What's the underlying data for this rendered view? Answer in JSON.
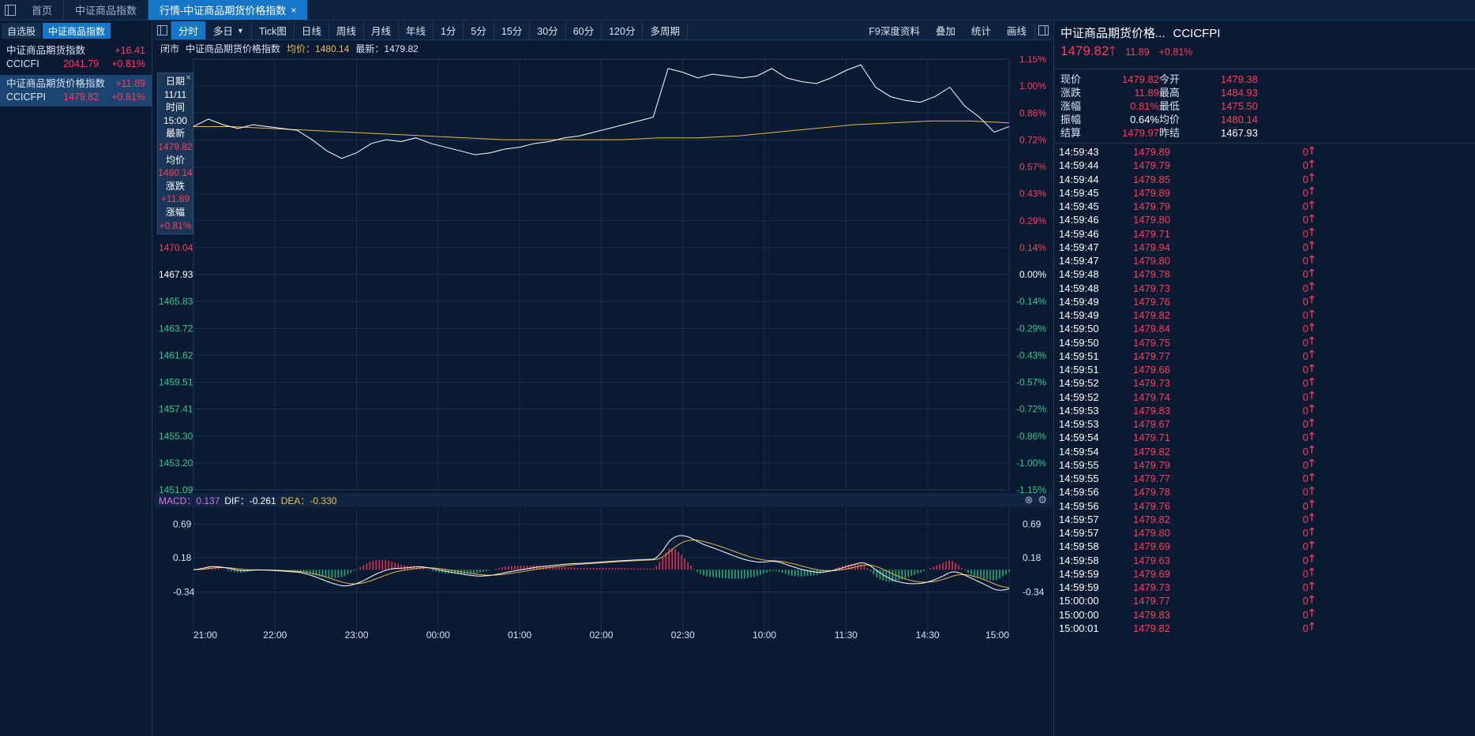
{
  "tabs": [
    {
      "label": "首页"
    },
    {
      "label": "中证商品指数"
    },
    {
      "label": "行情-中证商品期货价格指数",
      "close": "×"
    }
  ],
  "left": {
    "tabs": [
      "自选股",
      "中证商品指数"
    ],
    "items": [
      {
        "name": "中证商品期货指数",
        "change": "+16.41",
        "code": "CCICFI",
        "price": "2041.79",
        "pct": "+0.81%"
      },
      {
        "name": "中证商品期货价格指数",
        "change": "+11.89",
        "code": "CCICFPI",
        "price": "1479.82",
        "pct": "+0.81%"
      }
    ]
  },
  "toolbar": {
    "periods": [
      "分时",
      "多日",
      "Tick图",
      "日线",
      "周线",
      "月线",
      "年线",
      "1分",
      "5分",
      "15分",
      "30分",
      "60分",
      "120分",
      "多周期"
    ],
    "right": [
      "F9深度资料",
      "叠加",
      "统计",
      "画线"
    ]
  },
  "infobar": {
    "status": "闭市",
    "name": "中证商品期货价格指数",
    "avg": "均价：1480.14",
    "last": "最新：1479.82"
  },
  "tooltip": {
    "close": "×",
    "date_label": "日期",
    "date": "11/11",
    "time_label": "时间",
    "time": "15:00",
    "last_label": "最新",
    "last": "1479.82",
    "avg_label": "均价",
    "avg": "1480.14",
    "chg_label": "涨跌",
    "chg": "+11.89",
    "pct_label": "涨幅",
    "pct": "+0.81%"
  },
  "macd": {
    "macd": "MACD：0.137",
    "dif": "DIF：-0.261",
    "dea": "DEA：-0.330"
  },
  "right": {
    "title": "中证商品期货价格...",
    "code": "CCICFPI",
    "price": "1479.82",
    "arrow": "🡑",
    "chg": "11.89",
    "pct": "+0.81%",
    "quote": [
      [
        "现价",
        "1479.82",
        "今开",
        "1479.38"
      ],
      [
        "涨跌",
        "11.89",
        "最高",
        "1484.93"
      ],
      [
        "涨幅",
        "0.81%",
        "最低",
        "1475.50"
      ],
      [
        "振幅",
        "0.64%",
        "均价",
        "1480.14"
      ],
      [
        "结算",
        "1479.97",
        "昨结",
        "1467.93"
      ]
    ],
    "ticks": [
      [
        "14:59:43",
        "1479.89"
      ],
      [
        "14:59:44",
        "1479.79"
      ],
      [
        "14:59:44",
        "1479.85"
      ],
      [
        "14:59:45",
        "1479.89"
      ],
      [
        "14:59:45",
        "1479.79"
      ],
      [
        "14:59:46",
        "1479.80"
      ],
      [
        "14:59:46",
        "1479.71"
      ],
      [
        "14:59:47",
        "1479.94"
      ],
      [
        "14:59:47",
        "1479.80"
      ],
      [
        "14:59:48",
        "1479.78"
      ],
      [
        "14:59:48",
        "1479.73"
      ],
      [
        "14:59:49",
        "1479.76"
      ],
      [
        "14:59:49",
        "1479.82"
      ],
      [
        "14:59:50",
        "1479.84"
      ],
      [
        "14:59:50",
        "1479.75"
      ],
      [
        "14:59:51",
        "1479.77"
      ],
      [
        "14:59:51",
        "1479.66"
      ],
      [
        "14:59:52",
        "1479.73"
      ],
      [
        "14:59:52",
        "1479.74"
      ],
      [
        "14:59:53",
        "1479.83"
      ],
      [
        "14:59:53",
        "1479.67"
      ],
      [
        "14:59:54",
        "1479.71"
      ],
      [
        "14:59:54",
        "1479.82"
      ],
      [
        "14:59:55",
        "1479.79"
      ],
      [
        "14:59:55",
        "1479.77"
      ],
      [
        "14:59:56",
        "1479.78"
      ],
      [
        "14:59:56",
        "1479.76"
      ],
      [
        "14:59:57",
        "1479.82"
      ],
      [
        "14:59:57",
        "1479.80"
      ],
      [
        "14:59:58",
        "1479.69"
      ],
      [
        "14:59:58",
        "1479.63"
      ],
      [
        "14:59:59",
        "1479.69"
      ],
      [
        "14:59:59",
        "1479.73"
      ],
      [
        "15:00:00",
        "1479.77"
      ],
      [
        "15:00:00",
        "1479.83"
      ],
      [
        "15:00:01",
        "1479.82"
      ]
    ],
    "tick_volume": "0"
  },
  "chart_data": {
    "type": "line",
    "left_ticks": [
      "1470.04",
      "1467.93",
      "1465.83",
      "1463.72",
      "1461.62",
      "1459.51",
      "1457.41",
      "1455.30",
      "1453.20",
      "1451.09"
    ],
    "right_ticks": [
      "1.15%",
      "1.00%",
      "0.86%",
      "0.72%",
      "0.57%",
      "0.43%",
      "0.29%",
      "0.14%",
      "0.00%",
      "-0.14%",
      "-0.29%",
      "-0.43%",
      "-0.57%",
      "-0.72%",
      "-0.86%",
      "-1.00%",
      "-1.15%"
    ],
    "x_ticks": [
      "21:00",
      "22:00",
      "23:00",
      "00:00",
      "01:00",
      "02:00",
      "02:30",
      "10:00",
      "11:30",
      "14:30",
      "15:00"
    ],
    "ylim": [
      1451.09,
      1484.77
    ],
    "prev_settle": 1467.93,
    "price_series_pct": [
      0.79,
      0.83,
      0.8,
      0.78,
      0.8,
      0.79,
      0.78,
      0.77,
      0.72,
      0.66,
      0.62,
      0.65,
      0.7,
      0.72,
      0.71,
      0.73,
      0.7,
      0.68,
      0.66,
      0.64,
      0.65,
      0.67,
      0.68,
      0.7,
      0.71,
      0.73,
      0.74,
      0.76,
      0.78,
      0.8,
      0.82,
      0.84,
      1.1,
      1.08,
      1.05,
      1.07,
      1.06,
      1.05,
      1.06,
      1.1,
      1.05,
      1.03,
      1.02,
      1.05,
      1.09,
      1.12,
      1.0,
      0.95,
      0.93,
      0.92,
      0.95,
      1.0,
      0.9,
      0.84,
      0.76,
      0.79
    ],
    "avg_series_pct": [
      0.79,
      0.79,
      0.78,
      0.77,
      0.76,
      0.75,
      0.74,
      0.73,
      0.72,
      0.72,
      0.72,
      0.72,
      0.73,
      0.73,
      0.74,
      0.76,
      0.78,
      0.8,
      0.81,
      0.82,
      0.82,
      0.81
    ],
    "macd_ticks": [
      "0.69",
      "0.18",
      "-0.34"
    ],
    "macd_ylim": [
      -0.85,
      0.95
    ]
  }
}
